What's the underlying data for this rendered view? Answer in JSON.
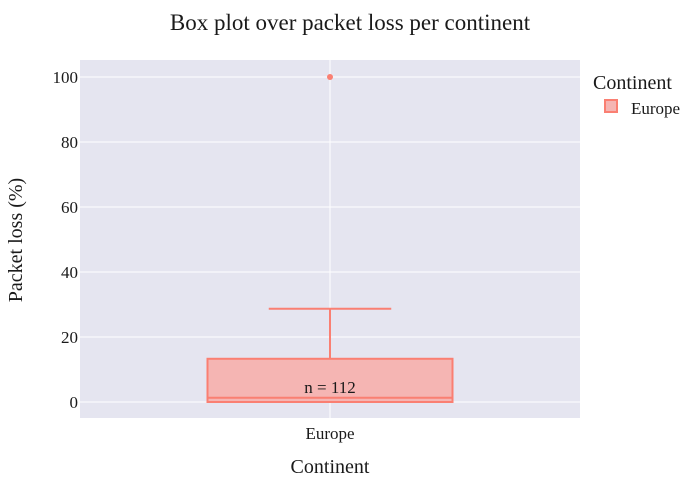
{
  "chart_data": {
    "type": "box",
    "title": "Box plot over packet loss per continent",
    "xlabel": "Continent",
    "ylabel": "Packet loss (%)",
    "ylim": [
      -5,
      105
    ],
    "yticks": [
      0,
      20,
      40,
      60,
      80,
      100
    ],
    "grid": true,
    "legend": {
      "title": "Continent",
      "placement": "top-right",
      "entries": [
        "Europe"
      ]
    },
    "categories": [
      "Europe"
    ],
    "series": [
      {
        "name": "Europe",
        "color": "#fa7f72",
        "fill": "#f5b5b3",
        "stats": {
          "min": 0,
          "q1": 0,
          "median": 1.3,
          "q3": 13.3,
          "upper_fence": 28.7
        },
        "outliers": [
          100
        ],
        "annotation": "n = 112"
      }
    ]
  }
}
